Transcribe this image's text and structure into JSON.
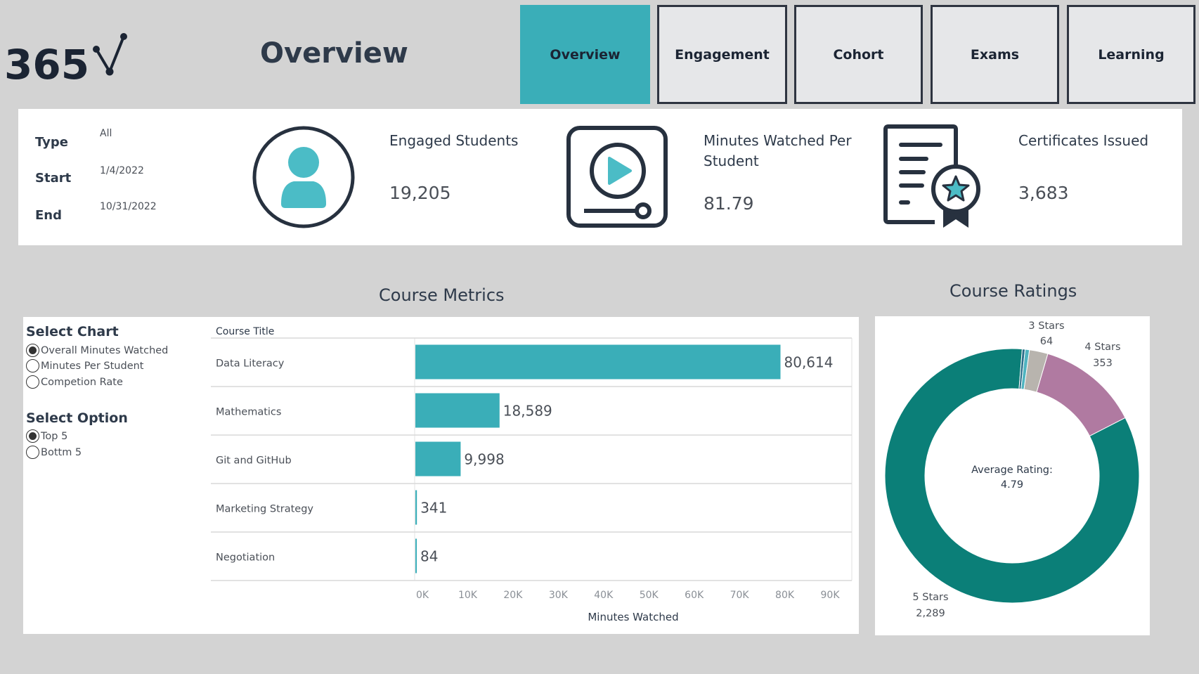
{
  "header": {
    "logo_text": "365",
    "page_title": "Overview",
    "nav": [
      {
        "label": "Overview",
        "active": true
      },
      {
        "label": "Engagement",
        "active": false
      },
      {
        "label": "Cohort",
        "active": false
      },
      {
        "label": "Exams",
        "active": false
      },
      {
        "label": "Learning",
        "active": false
      }
    ]
  },
  "filters": {
    "type_label": "Type",
    "type_value": "All",
    "start_label": "Start",
    "start_value": "1/4/2022",
    "end_label": "End",
    "end_value": "10/31/2022"
  },
  "kpis": {
    "engaged": {
      "title": "Engaged Students",
      "value": "19,205",
      "icon": "user-icon"
    },
    "minutes": {
      "title_line1": "Minutes Watched Per",
      "title_line2": "Student",
      "value": "81.79",
      "icon": "video-play-icon"
    },
    "certificates": {
      "title": "Certificates Issued",
      "value": "3,683",
      "icon": "certificate-icon"
    }
  },
  "course_metrics": {
    "title": "Course Metrics",
    "select_chart_title": "Select Chart",
    "chart_options": [
      {
        "label": "Overall Minutes Watched",
        "selected": true
      },
      {
        "label": "Minutes Per Student",
        "selected": false
      },
      {
        "label": "Competion Rate",
        "selected": false
      }
    ],
    "select_option_title": "Select Option",
    "option_choices": [
      {
        "label": "Top 5",
        "selected": true
      },
      {
        "label": "Bottm 5",
        "selected": false
      }
    ]
  },
  "course_ratings": {
    "title": "Course Ratings",
    "center_line1": "Average Rating:",
    "center_line2": "4.79"
  },
  "colors": {
    "accent": "#3aaeb8",
    "bar": "#3aaeb8",
    "five_stars": "#0b7f78",
    "four_stars": "#b07aa1",
    "three_stars": "#b8b4ae",
    "two_stars": "#4fb3bf",
    "one_star": "#2a6e8a"
  },
  "chart_data": [
    {
      "type": "bar",
      "orientation": "horizontal",
      "category_header": "Course Title",
      "categories": [
        "Data Literacy",
        "Mathematics",
        "Git and GitHub",
        "Marketing Strategy",
        "Negotiation"
      ],
      "values": [
        80614,
        18589,
        9998,
        341,
        84
      ],
      "value_labels": [
        "80,614",
        "18,589",
        "9,998",
        "341",
        "84"
      ],
      "xlabel": "Minutes Watched",
      "xlim": [
        0,
        90000
      ],
      "ticks": [
        "0K",
        "10K",
        "20K",
        "30K",
        "40K",
        "50K",
        "60K",
        "70K",
        "80K",
        "90K"
      ],
      "grid": false
    },
    {
      "type": "pie",
      "donut": true,
      "slices": [
        {
          "label": "5 Stars",
          "value": 2289,
          "value_label": "2,289",
          "labeled": true,
          "color": "#0b7f78"
        },
        {
          "label": "4 Stars",
          "value": 353,
          "value_label": "353",
          "labeled": true,
          "color": "#b07aa1"
        },
        {
          "label": "3 Stars",
          "value": 64,
          "value_label": "64",
          "labeled": true,
          "color": "#b8b4ae"
        },
        {
          "label": "",
          "value": 15,
          "value_label": "",
          "labeled": false,
          "color": "#4fb3bf"
        },
        {
          "label": "",
          "value": 10,
          "value_label": "",
          "labeled": false,
          "color": "#2a6e8a"
        }
      ]
    }
  ]
}
